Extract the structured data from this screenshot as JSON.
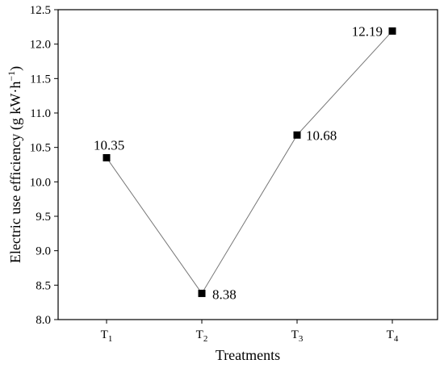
{
  "chart_data": {
    "type": "line",
    "title": "",
    "xlabel": "Treatments",
    "ylabel": {
      "main": "Electric use efficiency (g kW·h",
      "superscript": "−1",
      "close": ")"
    },
    "categories": [
      {
        "base": "T",
        "sub": "1"
      },
      {
        "base": "T",
        "sub": "2"
      },
      {
        "base": "T",
        "sub": "3"
      },
      {
        "base": "T",
        "sub": "4"
      }
    ],
    "values": [
      10.35,
      8.38,
      10.68,
      12.19
    ],
    "data_labels": [
      "10.35",
      "8.38",
      "10.68",
      "12.19"
    ],
    "ylim": [
      8.0,
      12.5
    ],
    "yticks": [
      "8.0",
      "8.5",
      "9.0",
      "9.5",
      "10.0",
      "10.5",
      "11.0",
      "11.5",
      "12.0",
      "12.5"
    ],
    "grid": false,
    "marker": "square",
    "line_color": "#777777",
    "marker_color": "#000000"
  }
}
